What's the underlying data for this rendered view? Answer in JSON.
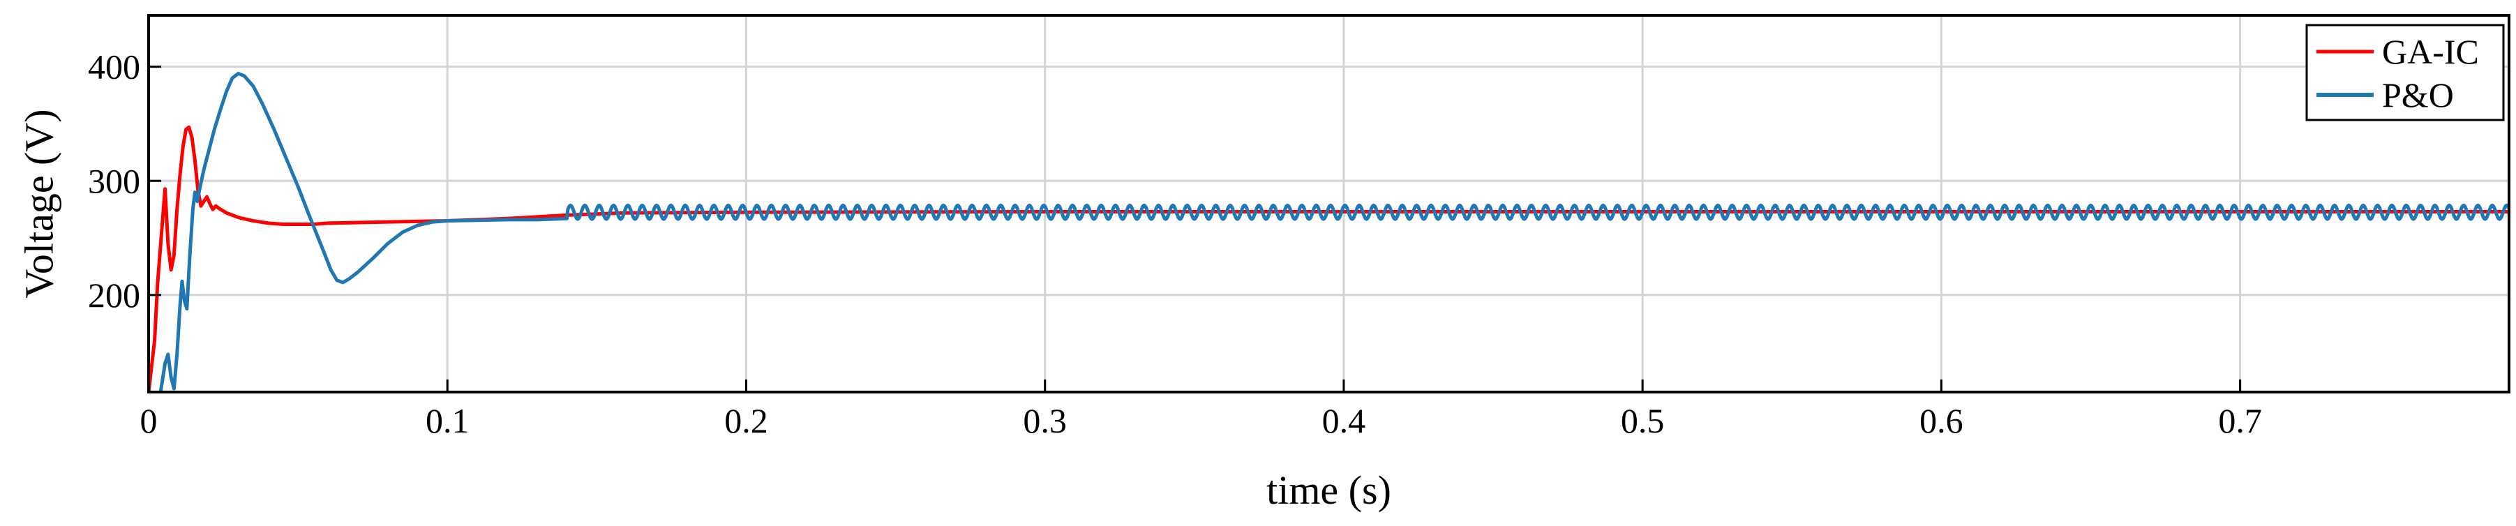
{
  "chart_data": {
    "type": "line",
    "title": "",
    "xlabel": "time (s)",
    "ylabel": "Voltage (V)",
    "xlim": [
      0,
      0.79
    ],
    "ylim": [
      115,
      445
    ],
    "x_ticks": [
      0,
      0.1,
      0.2,
      0.3,
      0.4,
      0.5,
      0.6,
      0.7
    ],
    "x_tick_labels": [
      "0",
      "0.1",
      "0.2",
      "0.3",
      "0.4",
      "0.5",
      "0.6",
      "0.7"
    ],
    "y_ticks": [
      200,
      300,
      400
    ],
    "y_tick_labels": [
      "200",
      "300",
      "400"
    ],
    "grid": true,
    "legend_position": "top-right",
    "series": [
      {
        "name": "GA-IC",
        "color": "#ff0000",
        "points": [
          [
            0,
            115
          ],
          [
            0.002,
            160
          ],
          [
            0.003,
            210
          ],
          [
            0.0045,
            260
          ],
          [
            0.0055,
            293
          ],
          [
            0.0065,
            245
          ],
          [
            0.0075,
            222
          ],
          [
            0.0085,
            235
          ],
          [
            0.0095,
            275
          ],
          [
            0.0105,
            305
          ],
          [
            0.0115,
            330
          ],
          [
            0.0125,
            345
          ],
          [
            0.0135,
            347
          ],
          [
            0.0145,
            338
          ],
          [
            0.0155,
            318
          ],
          [
            0.0165,
            292
          ],
          [
            0.0175,
            278
          ],
          [
            0.0185,
            282
          ],
          [
            0.0195,
            286
          ],
          [
            0.0205,
            280
          ],
          [
            0.0215,
            275
          ],
          [
            0.0225,
            278
          ],
          [
            0.0235,
            276
          ],
          [
            0.026,
            272
          ],
          [
            0.03,
            268
          ],
          [
            0.035,
            265
          ],
          [
            0.04,
            263
          ],
          [
            0.045,
            262
          ],
          [
            0.05,
            262
          ],
          [
            0.055,
            262
          ],
          [
            0.06,
            263
          ],
          [
            0.07,
            263.5
          ],
          [
            0.08,
            264
          ],
          [
            0.09,
            264.5
          ],
          [
            0.1,
            265
          ],
          [
            0.12,
            267
          ],
          [
            0.14,
            270
          ],
          [
            0.16,
            272
          ],
          [
            0.2,
            272.5
          ],
          [
            0.3,
            273
          ],
          [
            0.4,
            273
          ],
          [
            0.5,
            273
          ],
          [
            0.6,
            273
          ],
          [
            0.7,
            273
          ],
          [
            0.79,
            273
          ]
        ]
      },
      {
        "name": "P&O",
        "color": "#1f77b4",
        "points": [
          [
            0.004,
            115
          ],
          [
            0.0055,
            140
          ],
          [
            0.0065,
            148
          ],
          [
            0.0075,
            128
          ],
          [
            0.0085,
            118
          ],
          [
            0.0095,
            148
          ],
          [
            0.0105,
            190
          ],
          [
            0.0112,
            212
          ],
          [
            0.012,
            195
          ],
          [
            0.0128,
            188
          ],
          [
            0.0138,
            235
          ],
          [
            0.0148,
            275
          ],
          [
            0.0155,
            290
          ],
          [
            0.0163,
            282
          ],
          [
            0.017,
            292
          ],
          [
            0.0185,
            310
          ],
          [
            0.02,
            325
          ],
          [
            0.022,
            345
          ],
          [
            0.024,
            362
          ],
          [
            0.026,
            378
          ],
          [
            0.028,
            390
          ],
          [
            0.03,
            394
          ],
          [
            0.032,
            392
          ],
          [
            0.035,
            383
          ],
          [
            0.038,
            368
          ],
          [
            0.042,
            345
          ],
          [
            0.046,
            320
          ],
          [
            0.05,
            295
          ],
          [
            0.054,
            268
          ],
          [
            0.058,
            242
          ],
          [
            0.061,
            222
          ],
          [
            0.063,
            213
          ],
          [
            0.065,
            211
          ],
          [
            0.067,
            214
          ],
          [
            0.07,
            220
          ],
          [
            0.075,
            232
          ],
          [
            0.08,
            245
          ],
          [
            0.085,
            255
          ],
          [
            0.09,
            261
          ],
          [
            0.095,
            264
          ],
          [
            0.1,
            265
          ],
          [
            0.11,
            265.5
          ],
          [
            0.12,
            266
          ],
          [
            0.13,
            266
          ],
          [
            0.14,
            267
          ]
        ],
        "steady_state": {
          "start": 0.14,
          "end": 0.79,
          "center": 272.5,
          "amplitude": 6,
          "period": 0.0048
        }
      }
    ]
  }
}
